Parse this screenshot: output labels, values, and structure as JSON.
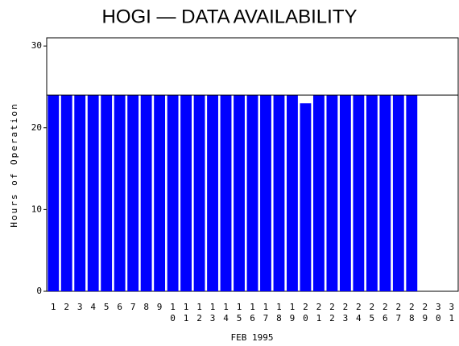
{
  "chart_data": {
    "type": "bar",
    "title": "HOGI — DATA AVAILABILITY",
    "x_label": "FEB 1995",
    "y_label": "Hours of Operation",
    "categories": [
      "1",
      "2",
      "3",
      "4",
      "5",
      "6",
      "7",
      "8",
      "9",
      "10",
      "11",
      "12",
      "13",
      "14",
      "15",
      "16",
      "17",
      "18",
      "19",
      "20",
      "21",
      "22",
      "23",
      "24",
      "25",
      "26",
      "27",
      "28",
      "29",
      "30",
      "31"
    ],
    "values": [
      24,
      24,
      24,
      24,
      24,
      24,
      24,
      24,
      24,
      24,
      24,
      24,
      24,
      24,
      24,
      24,
      24,
      24,
      24,
      23,
      24,
      24,
      24,
      24,
      24,
      24,
      24,
      24,
      null,
      null,
      null
    ],
    "color": "#0000ff",
    "reference_line": 24,
    "ylim": [
      0,
      31
    ],
    "yticks": [
      0,
      10,
      20,
      30
    ],
    "grid": false
  }
}
